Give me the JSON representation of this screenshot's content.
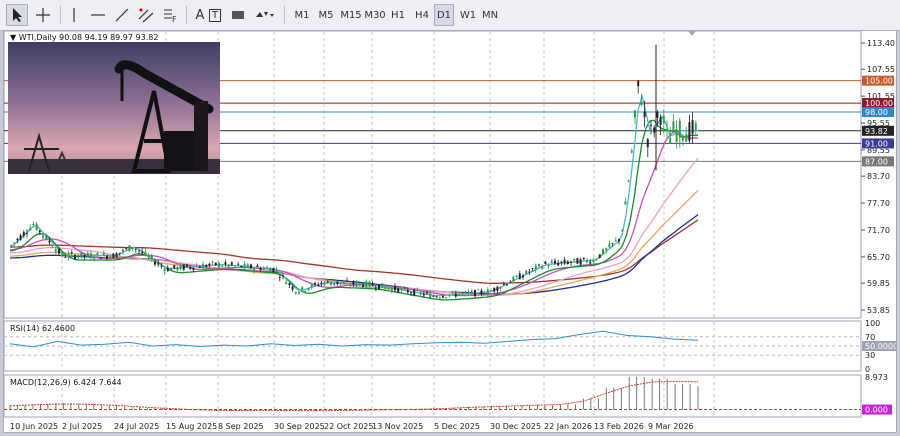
{
  "toolbar": {
    "tools": [
      {
        "name": "cursor-icon"
      },
      {
        "name": "crosshair-icon"
      },
      {
        "name": "vertical-line-icon"
      },
      {
        "name": "horizontal-line-icon"
      },
      {
        "name": "trendline-icon"
      },
      {
        "name": "channel-icon"
      },
      {
        "name": "fibonacci-icon"
      },
      {
        "name": "text-tool-icon"
      },
      {
        "name": "text-label-icon"
      },
      {
        "name": "rectangle-icon"
      },
      {
        "name": "shapes-dropdown-icon"
      }
    ],
    "text_tool_label": "A",
    "text_label_label": "T",
    "fib_label": "F",
    "timeframes": [
      "M1",
      "M5",
      "M15",
      "M30",
      "H1",
      "H4",
      "D1",
      "W1",
      "MN"
    ],
    "selected_timeframe": "D1"
  },
  "chart": {
    "header": "WTI,Daily  90.08 94.19 89.97 93.82",
    "colors": {
      "bull": "#2f9e44",
      "bear": "#222222",
      "ma_green": "#1c8a2b",
      "ma_cyan": "#4ab6c9",
      "ma_magenta": "#c84fc0",
      "ma_pink": "#e7a0c9",
      "ma_orange": "#e6a85a",
      "ma_navy": "#1f2f8f",
      "ma_brown": "#a0352a"
    },
    "hlines": [
      {
        "label": "105.00",
        "value": 105.0,
        "color": "#c55a2e"
      },
      {
        "label": "100.00",
        "value": 100.0,
        "color": "#8b1b2c"
      },
      {
        "label": "98.00",
        "value": 98.0,
        "color": "#2f88c9"
      },
      {
        "label": "93.82",
        "value": 93.82,
        "color": "#222222"
      },
      {
        "label": "91.00",
        "value": 91.0,
        "color": "#3a3a9a"
      },
      {
        "label": "87.00",
        "value": 87.0,
        "color": "#777777"
      }
    ]
  },
  "chart_data": {
    "type": "candlestick",
    "price_axis": {
      "ticks": [
        "113.40",
        "107.55",
        "101.55",
        "95.55",
        "89.55",
        "83.70",
        "77.70",
        "71.70",
        "65.70",
        "59.85",
        "53.85"
      ],
      "range": [
        53.85,
        113.4
      ]
    },
    "date_labels": [
      "10 Jun 2025",
      "2 Jul 2025",
      "24 Jul 2025",
      "15 Aug 2025",
      "8 Sep 2025",
      "30 Sep 2025",
      "22 Oct 2025",
      "13 Nov 2025",
      "5 Dec 2025",
      "30 Dec 2025",
      "22 Jan 2026",
      "13 Feb 2026",
      "9 Mar 2026"
    ],
    "close_path": [
      [
        "10 Jun 2025",
        68
      ],
      [
        "20 Jun 2025",
        73
      ],
      [
        "2 Jul 2025",
        66
      ],
      [
        "24 Jul 2025",
        66
      ],
      [
        "1 Aug 2025",
        68
      ],
      [
        "15 Aug 2025",
        63
      ],
      [
        "8 Sep 2025",
        64
      ],
      [
        "30 Sep 2025",
        63
      ],
      [
        "10 Oct 2025",
        58
      ],
      [
        "22 Oct 2025",
        60
      ],
      [
        "13 Nov 2025",
        59.5
      ],
      [
        "5 Dec 2025",
        57
      ],
      [
        "20 Dec 2025",
        57.5
      ],
      [
        "30 Dec 2025",
        58
      ],
      [
        "22 Jan 2026",
        64
      ],
      [
        "13 Feb 2026",
        65
      ],
      [
        "25 Feb 2026",
        70
      ],
      [
        "1 Mar 2026",
        85
      ],
      [
        "5 Mar 2026",
        105
      ],
      [
        "9 Mar 2026",
        92
      ],
      [
        "15 Mar 2026",
        98
      ],
      [
        "18 Mar 2026",
        91
      ],
      [
        "20 Mar 2026",
        93.82
      ]
    ],
    "indicators": [
      {
        "label": "RSI(14) 62.4600",
        "right_ticks": [
          "100",
          "70",
          "50.0000",
          "30",
          "0"
        ],
        "range": [
          0,
          100
        ],
        "levels": [
          70,
          50,
          30
        ],
        "series": [
          55,
          48,
          60,
          52,
          54,
          58,
          50,
          53,
          49,
          52,
          50,
          55,
          51,
          54,
          50,
          53,
          52,
          55,
          57,
          58,
          56,
          60,
          64,
          66,
          75,
          82,
          73,
          70,
          65,
          62.46
        ]
      },
      {
        "label": "MACD(12,26,9) 6.424 7.644",
        "right_ticks": [
          "8.973",
          "0.000"
        ],
        "range": [
          -1.5,
          8.973
        ],
        "histogram": [
          1.2,
          1.5,
          1.8,
          1.6,
          1.3,
          0.8,
          0.4,
          0.1,
          -0.2,
          -0.4,
          -0.3,
          -0.2,
          -0.3,
          -0.4,
          -0.3,
          -0.2,
          -0.1,
          0.0,
          0.2,
          0.5,
          0.8,
          1.0,
          1.1,
          1.3,
          1.5,
          3,
          6,
          8.973,
          8.5,
          7.0,
          6.424
        ],
        "signal": [
          1.0,
          1.3,
          1.5,
          1.5,
          1.3,
          1.0,
          0.6,
          0.3,
          0.0,
          -0.2,
          -0.3,
          -0.2,
          -0.3,
          -0.3,
          -0.3,
          -0.2,
          -0.1,
          0.0,
          0.1,
          0.3,
          0.6,
          0.8,
          1.0,
          1.2,
          1.4,
          2.3,
          4.5,
          6.5,
          7.6,
          7.8,
          7.644
        ]
      }
    ]
  }
}
